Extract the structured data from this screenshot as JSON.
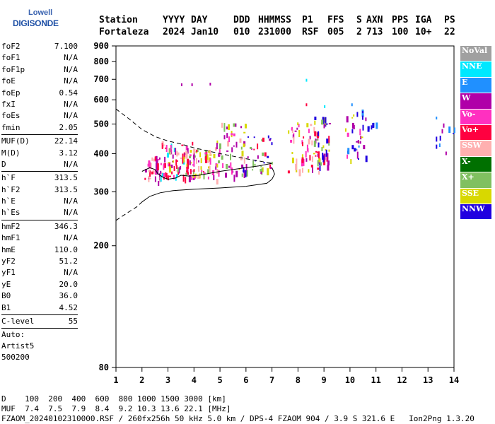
{
  "logo": {
    "line1": "Lowell",
    "line2": "DIGISONDE"
  },
  "header": {
    "row1": [
      "Station",
      "YYYY",
      "DAY",
      "DDD",
      "HHMMSS",
      "P1",
      "FFS",
      "S",
      "AXN",
      "PPS",
      "IGA",
      "PS"
    ],
    "row2": [
      "Fortaleza",
      "2024",
      "Jan10",
      "010",
      "231000",
      "RSF",
      "005",
      "2",
      "713",
      "100",
      "10+",
      "22"
    ]
  },
  "params": [
    {
      "k": "foF2",
      "v": "7.100"
    },
    {
      "k": "foF1",
      "v": "N/A"
    },
    {
      "k": "foF1p",
      "v": "N/A"
    },
    {
      "k": "foE",
      "v": "N/A"
    },
    {
      "k": "foEp",
      "v": "0.54"
    },
    {
      "k": "fxI",
      "v": "N/A"
    },
    {
      "k": "foEs",
      "v": "N/A"
    },
    {
      "k": "fmin",
      "v": "2.05"
    },
    {
      "sep": true
    },
    {
      "k": "MUF(D)",
      "v": "22.14"
    },
    {
      "k": "M(D)",
      "v": "3.12"
    },
    {
      "k": "D",
      "v": "N/A"
    },
    {
      "sep": true
    },
    {
      "k": "h`F",
      "v": "313.5"
    },
    {
      "k": "h`F2",
      "v": "313.5"
    },
    {
      "k": "h`E",
      "v": "N/A"
    },
    {
      "k": "h`Es",
      "v": "N/A"
    },
    {
      "sep": true
    },
    {
      "k": "hmF2",
      "v": "346.3"
    },
    {
      "k": "hmF1",
      "v": "N/A"
    },
    {
      "k": "hmE",
      "v": "110.0"
    },
    {
      "k": "yF2",
      "v": "51.2"
    },
    {
      "k": "yF1",
      "v": "N/A"
    },
    {
      "k": "yE",
      "v": "20.0"
    },
    {
      "k": "B0",
      "v": "36.0"
    },
    {
      "k": "B1",
      "v": "4.52"
    },
    {
      "sep": true
    },
    {
      "k": "C-level",
      "v": "55"
    },
    {
      "sep": true
    },
    {
      "txt": "Auto:"
    },
    {
      "txt": "Artist5"
    },
    {
      "txt": "500200"
    }
  ],
  "legend": [
    {
      "label": "NoVal",
      "color": "#a0a0a0"
    },
    {
      "label": "NNE",
      "color": "#00e8ff"
    },
    {
      "label": "E",
      "color": "#2090ff"
    },
    {
      "label": "W",
      "color": "#b000a8"
    },
    {
      "label": "Vo-",
      "color": "#ff30c0"
    },
    {
      "label": "Vo+",
      "color": "#ff0040"
    },
    {
      "label": "SSW",
      "color": "#ffb0b0"
    },
    {
      "label": "X-",
      "color": "#007000"
    },
    {
      "label": "X+",
      "color": "#80c060"
    },
    {
      "label": "SSE",
      "color": "#d8d800"
    },
    {
      "label": "NNW",
      "color": "#2000e0"
    }
  ],
  "bottom": {
    "line1": "D    100  200  400  600  800 1000 1500 3000 [km]",
    "line2": "MUF  7.4  7.5  7.9  8.4  9.2 10.3 13.6 22.1 [MHz]",
    "line3": "FZAOM_20240102310000.RSF / 260fx256h 50 kHz 5.0 km / DPS-4 FZAOM 904 / 3.9 S 321.6 E   Ion2Png 1.3.20"
  },
  "chart_data": {
    "type": "scatter",
    "title": "",
    "xlabel": "",
    "ylabel": "",
    "xlim": [
      1,
      14
    ],
    "ylim": [
      80,
      900
    ],
    "x_ticks": [
      1,
      2,
      3,
      4,
      5,
      6,
      7,
      8,
      9,
      10,
      11,
      12,
      13,
      14
    ],
    "y_ticks": [
      80,
      200,
      300,
      400,
      500,
      600,
      700,
      800,
      900
    ],
    "grid": false,
    "y_scale": "log",
    "legend_position": "right",
    "clusters": [
      {
        "x": [
          2.0,
          3.0
        ],
        "y": [
          325,
          395
        ],
        "n": 40,
        "colors": [
          "Vo+",
          "Vo-",
          "W",
          "SSW"
        ]
      },
      {
        "x": [
          2.7,
          4.0
        ],
        "y": [
          330,
          440
        ],
        "n": 60,
        "colors": [
          "Vo+",
          "Vo-",
          "W",
          "SSW",
          "NNE"
        ]
      },
      {
        "x": [
          3.0,
          4.6
        ],
        "y": [
          340,
          420
        ],
        "n": 45,
        "colors": [
          "SSW",
          "SSE",
          "X+",
          "Vo+"
        ]
      },
      {
        "x": [
          3.8,
          5.0
        ],
        "y": [
          330,
          420
        ],
        "n": 40,
        "colors": [
          "SSE",
          "SSW",
          "Vo-",
          "W"
        ]
      },
      {
        "x": [
          4.8,
          6.0
        ],
        "y": [
          340,
          510
        ],
        "n": 50,
        "colors": [
          "SSW",
          "Vo-",
          "W",
          "SSE",
          "X+"
        ]
      },
      {
        "x": [
          5.8,
          7.0
        ],
        "y": [
          350,
          470
        ],
        "n": 40,
        "colors": [
          "SSE",
          "Vo+",
          "W",
          "NNW",
          "X+"
        ]
      },
      {
        "x": [
          7.6,
          8.8
        ],
        "y": [
          350,
          510
        ],
        "n": 55,
        "colors": [
          "Vo+",
          "Vo-",
          "W",
          "SSW",
          "SSE"
        ]
      },
      {
        "x": [
          8.6,
          9.2
        ],
        "y": [
          360,
          540
        ],
        "n": 45,
        "colors": [
          "SSE",
          "X+",
          "NNW",
          "Vo+",
          "W"
        ]
      },
      {
        "x": [
          9.8,
          10.6
        ],
        "y": [
          380,
          560
        ],
        "n": 35,
        "colors": [
          "NNW",
          "E",
          "W",
          "SSE",
          "Vo-"
        ]
      },
      {
        "x": [
          10.6,
          11.0
        ],
        "y": [
          490,
          510
        ],
        "n": 6,
        "colors": [
          "NNW",
          "E"
        ]
      },
      {
        "x": [
          13.3,
          14.0
        ],
        "y": [
          405,
          520
        ],
        "n": 10,
        "colors": [
          "W",
          "NNW",
          "E"
        ]
      }
    ],
    "outliers": [
      {
        "x": 3.5,
        "y": 672,
        "c": "W"
      },
      {
        "x": 3.9,
        "y": 672,
        "c": "W"
      },
      {
        "x": 4.6,
        "y": 675,
        "c": "W"
      },
      {
        "x": 8.3,
        "y": 695,
        "c": "NNE"
      },
      {
        "x": 8.3,
        "y": 578,
        "c": "Vo+"
      },
      {
        "x": 10.05,
        "y": 578,
        "c": "E"
      },
      {
        "x": 13.3,
        "y": 523,
        "c": "E"
      },
      {
        "x": 9.0,
        "y": 570,
        "c": "NNE"
      }
    ],
    "profile_solid": [
      [
        2.0,
        350
      ],
      [
        2.3,
        360
      ],
      [
        2.5,
        355
      ],
      [
        2.6,
        345
      ],
      [
        2.8,
        335
      ],
      [
        3.0,
        330
      ],
      [
        3.3,
        333
      ],
      [
        3.5,
        340
      ],
      [
        3.8,
        338
      ],
      [
        4.2,
        340
      ],
      [
        4.6,
        345
      ],
      [
        5.0,
        350
      ],
      [
        5.5,
        355
      ],
      [
        6.0,
        360
      ],
      [
        6.5,
        365
      ],
      [
        7.0,
        372
      ]
    ],
    "profile_lower": [
      [
        2.0,
        278
      ],
      [
        2.3,
        290
      ],
      [
        2.7,
        298
      ],
      [
        3.2,
        303
      ],
      [
        4.0,
        306
      ],
      [
        5.0,
        309
      ],
      [
        6.0,
        313
      ],
      [
        6.8,
        320
      ],
      [
        7.0,
        330
      ],
      [
        7.1,
        343
      ],
      [
        7.05,
        352
      ],
      [
        7.0,
        360
      ]
    ],
    "dashed_upper": [
      [
        1.0,
        560
      ],
      [
        1.5,
        520
      ],
      [
        2.0,
        480
      ],
      [
        2.5,
        455
      ],
      [
        3.0,
        440
      ],
      [
        3.5,
        430
      ],
      [
        4.0,
        418
      ],
      [
        5.0,
        400
      ],
      [
        6.0,
        385
      ],
      [
        7.0,
        372
      ]
    ],
    "dashed_lower": [
      [
        1.0,
        242
      ],
      [
        1.4,
        255
      ],
      [
        1.8,
        268
      ],
      [
        2.0,
        278
      ]
    ]
  }
}
